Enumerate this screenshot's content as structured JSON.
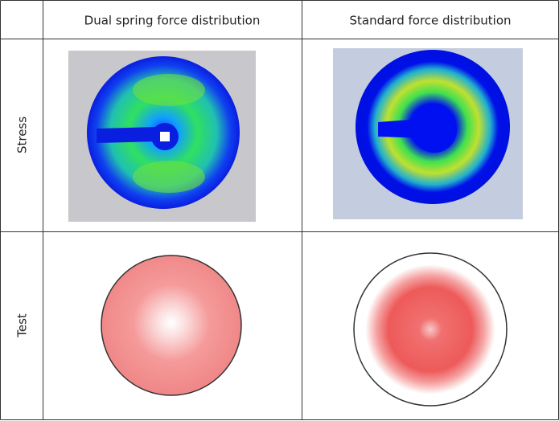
{
  "table": {
    "columns": [
      "Dual spring force distribution",
      "Standard force distribution"
    ],
    "rows": [
      "Stress",
      "Test"
    ]
  }
}
